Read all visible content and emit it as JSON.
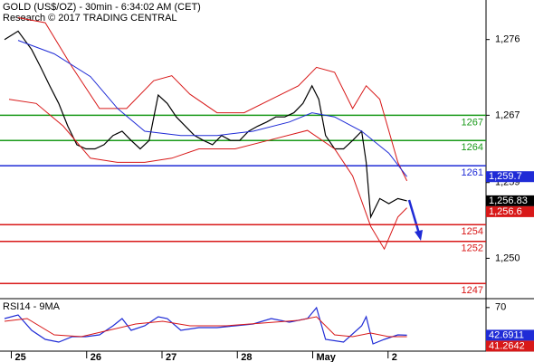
{
  "chart_data": [
    {
      "type": "line",
      "title": "GOLD (US$/OZ) - 30min - 6:34:02 AM (CET)",
      "subtitle": "Research © 2017 TRADING CENTRAL",
      "ylim": [
        1245.2,
        1280.7
      ],
      "xlim": [
        -0.15,
        6.3
      ],
      "yticks": [
        {
          "value": 1276,
          "label": "1,276"
        },
        {
          "value": 1267,
          "label": "1,267"
        },
        {
          "value": 1259,
          "label": "1,259"
        },
        {
          "value": 1250,
          "label": "1,250"
        }
      ],
      "series": [
        {
          "color": "#000000",
          "x": [
            -0.09,
            0.09,
            0.27,
            0.39,
            0.51,
            0.63,
            0.75,
            0.87,
            0.99,
            1.11,
            1.23,
            1.35,
            1.47,
            1.59,
            1.71,
            1.83,
            1.95,
            2.07,
            2.19,
            2.31,
            2.43,
            2.55,
            2.67,
            2.79,
            2.91,
            3.03,
            3.15,
            3.27,
            3.39,
            3.51,
            3.63,
            3.75,
            3.87,
            3.99,
            4.08,
            4.17,
            4.29,
            4.41,
            4.53,
            4.65,
            4.71,
            4.77,
            4.89,
            5.01,
            5.13,
            5.25
          ],
          "values": [
            1276,
            1277,
            1274.8,
            1272.7,
            1270.5,
            1268.4,
            1265.7,
            1263.5,
            1263,
            1263,
            1263.5,
            1264.6,
            1265.1,
            1264,
            1263,
            1264,
            1269.4,
            1268.4,
            1266.8,
            1265.7,
            1264.6,
            1264,
            1263.5,
            1264.6,
            1264,
            1264,
            1265.1,
            1265.7,
            1266.2,
            1266.8,
            1266.8,
            1267.3,
            1268.4,
            1270.5,
            1268.9,
            1264.6,
            1263,
            1263,
            1264,
            1265.1,
            1261.4,
            1254.9,
            1257.1,
            1256.5,
            1257.1,
            1256.83
          ]
        },
        {
          "color": "#d81818",
          "x": [
            0.09,
            0.45,
            0.81,
            1.17,
            1.53,
            1.89,
            2.13,
            2.37,
            2.73,
            3.09,
            3.45,
            3.81,
            4.05,
            4.29,
            4.53,
            4.71,
            4.89,
            5.13,
            5.25
          ],
          "values": [
            1278.6,
            1278.0,
            1272.7,
            1267.8,
            1267.8,
            1271.1,
            1271.7,
            1269.5,
            1267.3,
            1267.3,
            1268.9,
            1270.5,
            1272.7,
            1272.1,
            1267.8,
            1270.5,
            1268.9,
            1261.4,
            1259.2
          ]
        },
        {
          "color": "#d81818",
          "x": [
            -0.03,
            0.33,
            0.69,
            1.05,
            1.41,
            1.77,
            2.13,
            2.49,
            2.97,
            3.45,
            3.93,
            4.29,
            4.53,
            4.77,
            4.95,
            5.13,
            5.25
          ],
          "values": [
            1268.9,
            1268.4,
            1265.7,
            1261.9,
            1261.4,
            1261.4,
            1261.9,
            1263,
            1263,
            1264.1,
            1265.2,
            1263,
            1259.8,
            1253.8,
            1251.1,
            1254.9,
            1256
          ]
        },
        {
          "color": "#1f2bd6",
          "x": [
            0.09,
            0.57,
            1.05,
            1.41,
            1.77,
            2.25,
            2.73,
            3.21,
            3.69,
            3.99,
            4.29,
            4.65,
            5.01,
            5.25
          ],
          "values": [
            1275.9,
            1274.3,
            1271.6,
            1267.8,
            1265.1,
            1264.6,
            1264.6,
            1265.1,
            1266.2,
            1267.3,
            1266.8,
            1265.1,
            1262.5,
            1259.7
          ]
        }
      ],
      "levels": [
        {
          "value": 1267,
          "color": "#1a9a1a"
        },
        {
          "value": 1264,
          "color": "#1a9a1a"
        },
        {
          "value": 1261,
          "color": "#1f2bd6"
        },
        {
          "value": 1254,
          "color": "#d81818"
        },
        {
          "value": 1252,
          "color": "#d81818"
        },
        {
          "value": 1247,
          "color": "#d81818"
        }
      ],
      "price_labels": [
        {
          "value": 1259.7,
          "label": "1,259.7",
          "color": "#1f2bd6"
        },
        {
          "value": 1256.83,
          "label": "1,256.83",
          "color": "#000000"
        },
        {
          "value": 1256.6,
          "label": "1,256.6",
          "color": "#d81818"
        }
      ]
    },
    {
      "type": "line",
      "title": "RSI14 - 9MA",
      "ylim": [
        27,
        77
      ],
      "xlim": [
        -0.15,
        6.3
      ],
      "yticks": [
        70
      ],
      "xticks": [
        {
          "value": 0,
          "label": "25"
        },
        {
          "value": 1,
          "label": "26"
        },
        {
          "value": 2,
          "label": "27"
        },
        {
          "value": 3,
          "label": "28"
        },
        {
          "value": 4,
          "label": "May"
        },
        {
          "value": 5,
          "label": "2"
        }
      ],
      "series": [
        {
          "color": "#1f2bd6",
          "x": [
            -0.09,
            0.09,
            0.27,
            0.45,
            0.63,
            0.81,
            0.99,
            1.17,
            1.35,
            1.47,
            1.59,
            1.77,
            1.95,
            2.07,
            2.25,
            2.49,
            2.73,
            2.97,
            3.21,
            3.45,
            3.69,
            3.93,
            4.05,
            4.17,
            4.41,
            4.65,
            4.71,
            4.8,
            4.95,
            5.13,
            5.25
          ],
          "values": [
            59.1,
            62.7,
            47.5,
            38.6,
            35.9,
            41.3,
            41.3,
            43.1,
            52,
            59.1,
            47.5,
            52,
            60.9,
            59.1,
            47.5,
            50.2,
            50.2,
            52,
            53.8,
            59.1,
            55.6,
            59.1,
            69.9,
            38.6,
            35.9,
            52,
            60.9,
            34.1,
            38.6,
            43.1,
            42.6911
          ]
        },
        {
          "color": "#d81818",
          "x": [
            -0.09,
            0.21,
            0.57,
            0.93,
            1.29,
            1.65,
            2.01,
            2.37,
            2.85,
            3.33,
            3.81,
            4.05,
            4.29,
            4.53,
            4.77,
            5.01,
            5.25
          ],
          "values": [
            56.5,
            59.1,
            43.1,
            41.3,
            47.5,
            53.8,
            56.5,
            52,
            52,
            54.7,
            57.4,
            60.9,
            43.1,
            41.3,
            44.9,
            41.3,
            41.2642
          ]
        }
      ],
      "price_labels": [
        {
          "value": 42.6911,
          "color": "#1f2bd6"
        },
        {
          "value": 41.2642,
          "color": "#d81818"
        }
      ]
    }
  ]
}
